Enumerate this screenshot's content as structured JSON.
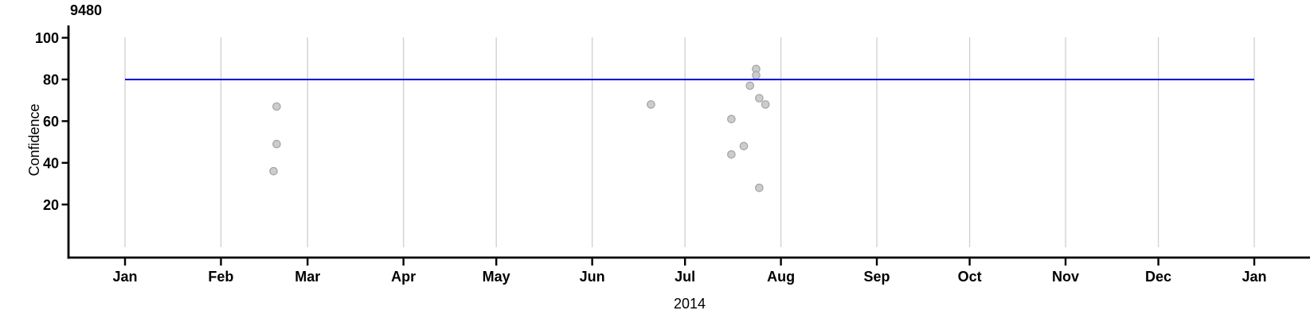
{
  "title": "9480",
  "chart_data": {
    "type": "scatter",
    "title": "9480",
    "xlabel": "2014",
    "ylabel": "Confidence",
    "x_axis": {
      "start_date": "2014-01-01",
      "end_date": "2015-01-01",
      "year_label": "2014",
      "month_ticks": [
        {
          "label": "Jan",
          "day": 0
        },
        {
          "label": "Feb",
          "day": 31
        },
        {
          "label": "Mar",
          "day": 59
        },
        {
          "label": "Apr",
          "day": 90
        },
        {
          "label": "May",
          "day": 120
        },
        {
          "label": "Jun",
          "day": 151
        },
        {
          "label": "Jul",
          "day": 181
        },
        {
          "label": "Aug",
          "day": 212
        },
        {
          "label": "Sep",
          "day": 243
        },
        {
          "label": "Oct",
          "day": 273
        },
        {
          "label": "Nov",
          "day": 304
        },
        {
          "label": "Dec",
          "day": 334
        },
        {
          "label": "Jan",
          "day": 365
        }
      ]
    },
    "y_axis": {
      "ticks": [
        20,
        40,
        60,
        80,
        100
      ],
      "tick_labels": [
        "20",
        "40",
        "60",
        "80",
        "100"
      ],
      "range": [
        0,
        105
      ]
    },
    "grid": "vertical-month-lines",
    "legend": "none",
    "reference_line": {
      "value": 80,
      "orientation": "horizontal"
    },
    "points": [
      {
        "date": "2014-02-18",
        "confidence": 36
      },
      {
        "date": "2014-02-19",
        "confidence": 49
      },
      {
        "date": "2014-02-19",
        "confidence": 67
      },
      {
        "date": "2014-06-20",
        "confidence": 68
      },
      {
        "date": "2014-07-16",
        "confidence": 61
      },
      {
        "date": "2014-07-16",
        "confidence": 44
      },
      {
        "date": "2014-07-20",
        "confidence": 48
      },
      {
        "date": "2014-07-22",
        "confidence": 77
      },
      {
        "date": "2014-07-24",
        "confidence": 85
      },
      {
        "date": "2014-07-24",
        "confidence": 82
      },
      {
        "date": "2014-07-25",
        "confidence": 71
      },
      {
        "date": "2014-07-25",
        "confidence": 28
      },
      {
        "date": "2014-07-27",
        "confidence": 68
      }
    ],
    "colors": {
      "reference_line": "#0000dd",
      "point_fill": "#cccccc",
      "point_stroke": "#a3a3a3",
      "gridline": "#d2d2d2",
      "axis": "#000000",
      "background": "#ffffff"
    }
  }
}
